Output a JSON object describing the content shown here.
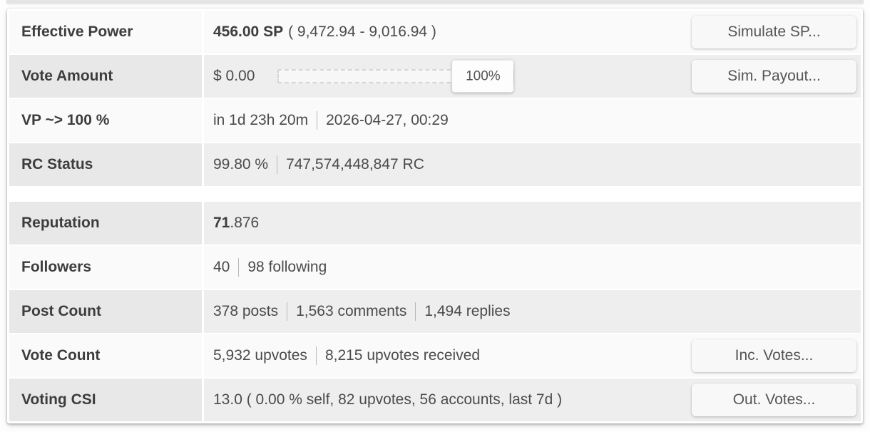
{
  "colors": {
    "card_bg": "#ffffff",
    "row_gray_label_bg": "#e8e8e8",
    "row_gray_value_bg": "#eeeeee",
    "row_white_bg": "#fafafa",
    "label_text": "#3d3d3d",
    "value_text": "#4b4b4b",
    "button_text": "#555555"
  },
  "rows": [
    {
      "label": "Effective Power",
      "value_bold": "456.00 SP",
      "value_rest": "( 9,472.94 - 9,016.94 )",
      "button": "Simulate SP..."
    },
    {
      "label": "Vote Amount",
      "amount": "$ 0.00",
      "slider_value": "100%",
      "button": "Sim. Payout..."
    },
    {
      "label": "VP ~> 100 %",
      "segments": [
        "in 1d 23h 20m",
        "2026-04-27, 00:29"
      ]
    },
    {
      "label": "RC Status",
      "segments": [
        "99.80 %",
        "747,574,448,847 RC"
      ]
    },
    {
      "label": "Reputation",
      "value_bold": "71",
      "value_rest": ".876"
    },
    {
      "label": "Followers",
      "segments": [
        "40",
        "98 following"
      ]
    },
    {
      "label": "Post Count",
      "segments": [
        "378 posts",
        "1,563 comments",
        "1,494 replies"
      ]
    },
    {
      "label": "Vote Count",
      "segments": [
        "5,932 upvotes",
        "8,215 upvotes received"
      ],
      "button": "Inc. Votes..."
    },
    {
      "label": "Voting CSI",
      "segments": [
        "13.0 ( 0.00 % self, 82 upvotes, 56 accounts, last 7d )"
      ],
      "button": "Out. Votes..."
    }
  ]
}
